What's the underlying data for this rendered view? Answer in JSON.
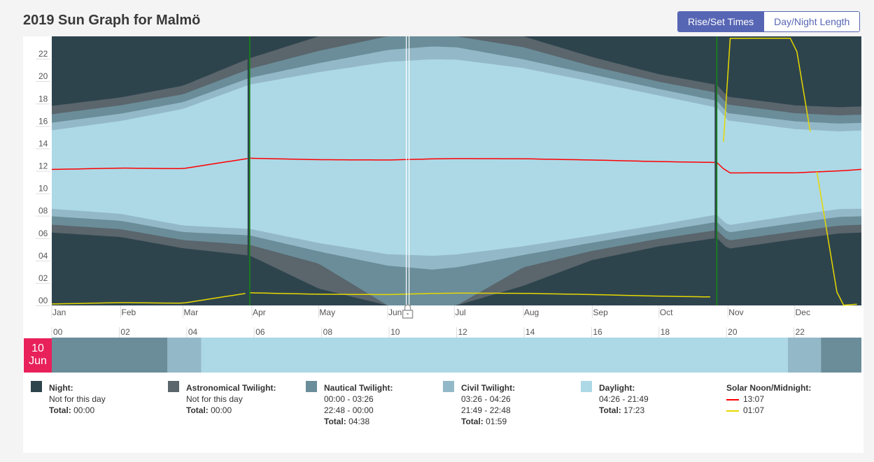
{
  "title": "2019 Sun Graph for Malmö",
  "toggle": {
    "rise_set": "Rise/Set Times",
    "day_night": "Day/Night Length"
  },
  "colors": {
    "night": "#2e444d",
    "astro": "#5a656c",
    "nautical": "#6a8d99",
    "civil": "#93b9c8",
    "day": "#add8e6",
    "noon": "#ff0000",
    "midnight": "#e6d800",
    "dst": "#138a13"
  },
  "chart_data": {
    "type": "area",
    "title": "2019 Sun Graph for Malmö",
    "x_ticks": [
      "Jan",
      "Feb",
      "Mar",
      "Apr",
      "May",
      "Jun",
      "Jul",
      "Aug",
      "Sep",
      "Oct",
      "Nov",
      "Dec"
    ],
    "y_ticks": [
      "00",
      "02",
      "04",
      "06",
      "08",
      "10",
      "12",
      "14",
      "16",
      "18",
      "20",
      "22"
    ],
    "y_range": [
      0,
      24
    ],
    "dst_start_day": 90,
    "dst_end_day": 300,
    "selected_day": 161,
    "series_samples_day": [
      1,
      32,
      60,
      90,
      121,
      152,
      172,
      183,
      213,
      244,
      274,
      300,
      305,
      335,
      355,
      365
    ],
    "sunrise": [
      8.62,
      8.17,
      7.13,
      6.83,
      5.57,
      4.57,
      4.43,
      4.55,
      5.28,
      6.23,
      7.2,
      8.1,
      7.15,
      8.05,
      8.6,
      8.62
    ],
    "sunset": [
      15.62,
      16.45,
      17.53,
      19.7,
      20.8,
      21.72,
      21.95,
      21.92,
      21.17,
      19.95,
      18.72,
      17.65,
      16.5,
      15.73,
      15.52,
      15.6
    ],
    "civil_dawn": [
      7.95,
      7.55,
      6.55,
      6.25,
      4.82,
      3.55,
      3.2,
      3.4,
      4.5,
      5.6,
      6.6,
      7.45,
      6.5,
      7.35,
      7.9,
      7.95
    ],
    "civil_dusk": [
      16.3,
      17.1,
      18.13,
      20.3,
      21.6,
      22.78,
      23.1,
      23.02,
      21.95,
      20.6,
      19.3,
      18.25,
      17.15,
      16.42,
      16.22,
      16.28
    ],
    "nautical_dawn": [
      7.2,
      6.8,
      5.83,
      5.4,
      3.73,
      0.0,
      0.0,
      0.0,
      3.4,
      4.87,
      5.95,
      6.72,
      5.78,
      6.6,
      7.12,
      7.2
    ],
    "nautical_dusk": [
      17.05,
      17.85,
      18.83,
      21.1,
      22.7,
      24.0,
      24.0,
      24.0,
      23.03,
      21.33,
      19.95,
      18.97,
      17.92,
      17.15,
      16.95,
      17.02
    ],
    "astro_dawn": [
      6.5,
      6.1,
      5.1,
      4.45,
      1.5,
      0.0,
      0.0,
      0.0,
      1.75,
      4.05,
      5.27,
      6.02,
      5.05,
      5.9,
      6.42,
      6.5
    ],
    "astro_dusk": [
      17.8,
      18.55,
      19.6,
      22.05,
      24.0,
      24.0,
      24.0,
      24.0,
      24.0,
      22.15,
      20.62,
      19.67,
      18.62,
      17.85,
      17.68,
      17.75
    ],
    "solar_noon": [
      12.13,
      12.25,
      12.2,
      13.13,
      13.0,
      12.97,
      13.07,
      13.1,
      13.08,
      12.97,
      12.83,
      12.75,
      11.82,
      11.83,
      12.0,
      12.13
    ],
    "solar_midnight": [
      0.13,
      0.25,
      0.2,
      1.13,
      1.0,
      0.97,
      1.07,
      1.1,
      1.08,
      0.97,
      0.83,
      0.75,
      23.82,
      23.83,
      0.0,
      0.13
    ],
    "day_bar": {
      "hour_ticks": [
        "00",
        "02",
        "04",
        "06",
        "08",
        "10",
        "12",
        "14",
        "16",
        "18",
        "20",
        "22"
      ],
      "segments": [
        {
          "band": "nautical",
          "from": 0.0,
          "to": 3.43
        },
        {
          "band": "civil",
          "from": 3.43,
          "to": 4.43
        },
        {
          "band": "day",
          "from": 4.43,
          "to": 21.82
        },
        {
          "band": "civil",
          "from": 21.82,
          "to": 22.8
        },
        {
          "band": "nautical",
          "from": 22.8,
          "to": 24.0
        }
      ]
    }
  },
  "selected_date": {
    "day": "10",
    "month": "Jun"
  },
  "legend": {
    "night": {
      "title": "Night:",
      "line1": "Not for this day",
      "total_label": "Total:",
      "total": "00:00"
    },
    "astro": {
      "title": "Astronomical Twilight:",
      "line1": "Not for this day",
      "total_label": "Total:",
      "total": "00:00"
    },
    "nautical": {
      "title": "Nautical Twilight:",
      "line1": "00:00 - 03:26",
      "line2": "22:48 - 00:00",
      "total_label": "Total:",
      "total": "04:38"
    },
    "civil": {
      "title": "Civil Twilight:",
      "line1": "03:26 - 04:26",
      "line2": "21:49 - 22:48",
      "total_label": "Total:",
      "total": "01:59"
    },
    "daylight": {
      "title": "Daylight:",
      "line1": "04:26 - 21:49",
      "total_label": "Total:",
      "total": "17:23"
    },
    "solar": {
      "title": "Solar Noon/Midnight:",
      "noon": "13:07",
      "midnight": "01:07"
    }
  }
}
